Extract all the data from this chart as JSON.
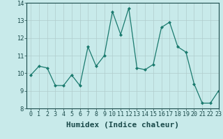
{
  "x": [
    0,
    1,
    2,
    3,
    4,
    5,
    6,
    7,
    8,
    9,
    10,
    11,
    12,
    13,
    14,
    15,
    16,
    17,
    18,
    19,
    20,
    21,
    22,
    23
  ],
  "y": [
    9.9,
    10.4,
    10.3,
    9.3,
    9.3,
    9.9,
    9.3,
    11.5,
    10.4,
    11.0,
    13.5,
    12.2,
    13.7,
    10.3,
    10.2,
    10.5,
    12.6,
    12.9,
    11.5,
    11.2,
    9.4,
    8.3,
    8.3,
    9.0
  ],
  "xlabel": "Humidex (Indice chaleur)",
  "ylim": [
    8,
    14
  ],
  "xlim": [
    -0.5,
    23
  ],
  "yticks": [
    8,
    9,
    10,
    11,
    12,
    13,
    14
  ],
  "xticks": [
    0,
    1,
    2,
    3,
    4,
    5,
    6,
    7,
    8,
    9,
    10,
    11,
    12,
    13,
    14,
    15,
    16,
    17,
    18,
    19,
    20,
    21,
    22,
    23
  ],
  "line_color": "#1a7a6e",
  "marker": "D",
  "marker_size": 2.0,
  "bg_color": "#c8eaea",
  "grid_color": "#b0cccc",
  "xlabel_fontsize": 8,
  "tick_fontsize": 6
}
